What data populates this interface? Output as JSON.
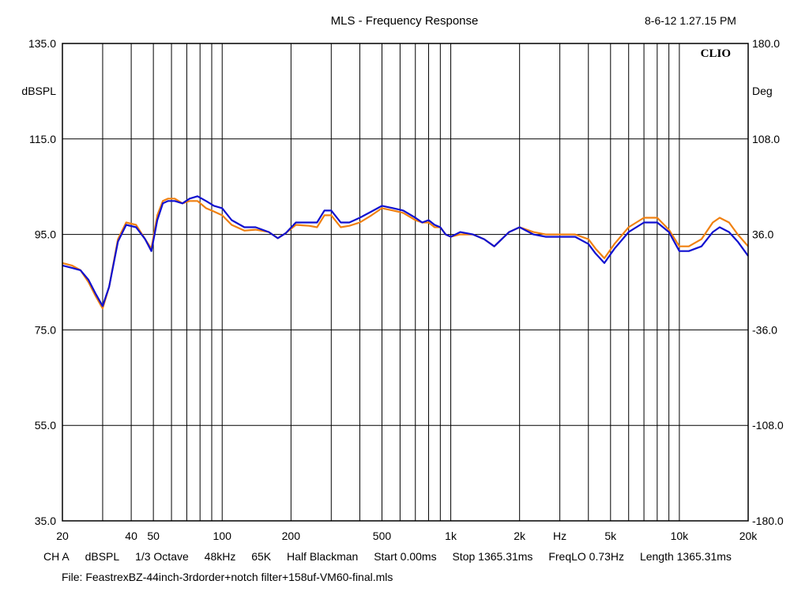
{
  "header": {
    "title": "MLS - Frequency Response",
    "datetime": "8-6-12 1.27.15 PM"
  },
  "brand": "CLIO",
  "footer": {
    "channel": "CH A",
    "unit": "dBSPL",
    "smoothing": "1/3 Octave",
    "sample_rate": "48kHz",
    "size": "65K",
    "window": "Half Blackman",
    "start": "Start 0.00ms",
    "stop": "Stop 1365.31ms",
    "freqlo": "FreqLO 0.73Hz",
    "length": "Length 1365.31ms",
    "file": "File: FeastrexBZ-44inch-3rdorder+notch filter+158uf-VM60-final.mls"
  },
  "chart_data": {
    "type": "line",
    "title": "MLS - Frequency Response",
    "xlabel": "Hz",
    "ylabel": "dBSPL",
    "y2label": "Deg",
    "xscale": "log",
    "xlim": [
      20,
      20000
    ],
    "ylim": [
      35,
      135
    ],
    "y2lim": [
      -180,
      180
    ],
    "grid": true,
    "x_ticks": [
      20,
      50,
      100,
      200,
      500,
      1000,
      2000,
      5000,
      10000,
      20000
    ],
    "x_tick_labels": [
      "20",
      "50",
      "100",
      "200",
      "500",
      "1k",
      "2k",
      "5k",
      "10k",
      "20k"
    ],
    "x_minor_grid": [
      30,
      40,
      60,
      70,
      80,
      90,
      300,
      400,
      600,
      700,
      800,
      900,
      3000,
      4000,
      6000,
      7000,
      8000,
      9000
    ],
    "x_label_extra": [
      {
        "freq": 40,
        "label": "40"
      },
      {
        "freq": 3000,
        "label": "Hz"
      }
    ],
    "y_ticks": [
      135,
      115,
      95,
      75,
      55,
      35
    ],
    "y_tick_labels": [
      "135.0",
      "115.0",
      "95.0",
      "75.0",
      "55.0",
      "35.0"
    ],
    "y2_tick_labels": [
      "180.0",
      "108.0",
      "36.0",
      "-36.0",
      "-108.0",
      "-180.0"
    ],
    "series": [
      {
        "color": "#f08010",
        "x": [
          20,
          22,
          24,
          26,
          28,
          30,
          32,
          35,
          38,
          42,
          46,
          49,
          52,
          55,
          58,
          62,
          67,
          72,
          78,
          85,
          92,
          100,
          110,
          125,
          140,
          160,
          175,
          190,
          210,
          240,
          260,
          280,
          300,
          330,
          360,
          400,
          450,
          500,
          560,
          620,
          700,
          750,
          800,
          850,
          900,
          950,
          1000,
          1100,
          1250,
          1400,
          1550,
          1800,
          2000,
          2300,
          2600,
          3000,
          3500,
          4000,
          4300,
          4700,
          5200,
          6000,
          7000,
          8000,
          9000,
          10000,
          11000,
          12500,
          14000,
          15000,
          16500,
          18000,
          20000
        ],
        "values": [
          89,
          88.5,
          87.5,
          85,
          82,
          79.5,
          84,
          94,
          97.5,
          97,
          94,
          92,
          99,
          102,
          102.5,
          102.5,
          101.5,
          102,
          102,
          100.5,
          99.8,
          99,
          97,
          95.8,
          96,
          95.5,
          94.2,
          95.3,
          97,
          96.8,
          96.5,
          99,
          99,
          96.5,
          96.8,
          97.5,
          99,
          100.5,
          100,
          99.5,
          98,
          97.5,
          97.5,
          96.5,
          96.5,
          95,
          94.5,
          95,
          95,
          94,
          92.5,
          95.5,
          96.5,
          95.5,
          95,
          95,
          95,
          94,
          92,
          90,
          93,
          96.5,
          98.5,
          98.5,
          96,
          92.5,
          92.5,
          94,
          97.5,
          98.5,
          97.5,
          95,
          92.5
        ]
      },
      {
        "color": "#1010d0",
        "x": [
          20,
          22,
          24,
          26,
          28,
          30,
          32,
          35,
          38,
          42,
          46,
          49,
          52,
          55,
          58,
          62,
          67,
          72,
          78,
          85,
          92,
          100,
          110,
          125,
          140,
          160,
          175,
          190,
          210,
          240,
          260,
          280,
          300,
          330,
          360,
          400,
          450,
          500,
          560,
          620,
          700,
          750,
          800,
          850,
          900,
          950,
          1000,
          1100,
          1250,
          1400,
          1550,
          1800,
          2000,
          2300,
          2600,
          3000,
          3500,
          4000,
          4300,
          4700,
          5200,
          6000,
          7000,
          8000,
          9000,
          10000,
          11000,
          12500,
          14000,
          15000,
          16500,
          18000,
          20000
        ],
        "values": [
          88.5,
          88,
          87.5,
          85.5,
          82.5,
          80,
          84,
          93.5,
          97,
          96.5,
          94,
          91.5,
          98,
          101.5,
          102,
          102,
          101.5,
          102.5,
          103,
          102,
          101,
          100.5,
          98,
          96.5,
          96.5,
          95.5,
          94.2,
          95.3,
          97.5,
          97.5,
          97.5,
          100,
          100,
          97.5,
          97.5,
          98.5,
          99.8,
          101,
          100.5,
          100,
          98.5,
          97.5,
          98,
          97,
          96.5,
          95,
          94.5,
          95.5,
          95,
          94,
          92.5,
          95.5,
          96.5,
          95,
          94.5,
          94.5,
          94.5,
          93,
          91,
          89,
          92,
          95.5,
          97.5,
          97.5,
          95.5,
          91.5,
          91.5,
          92.5,
          95.5,
          96.5,
          95.5,
          93.5,
          90.5
        ]
      }
    ]
  }
}
